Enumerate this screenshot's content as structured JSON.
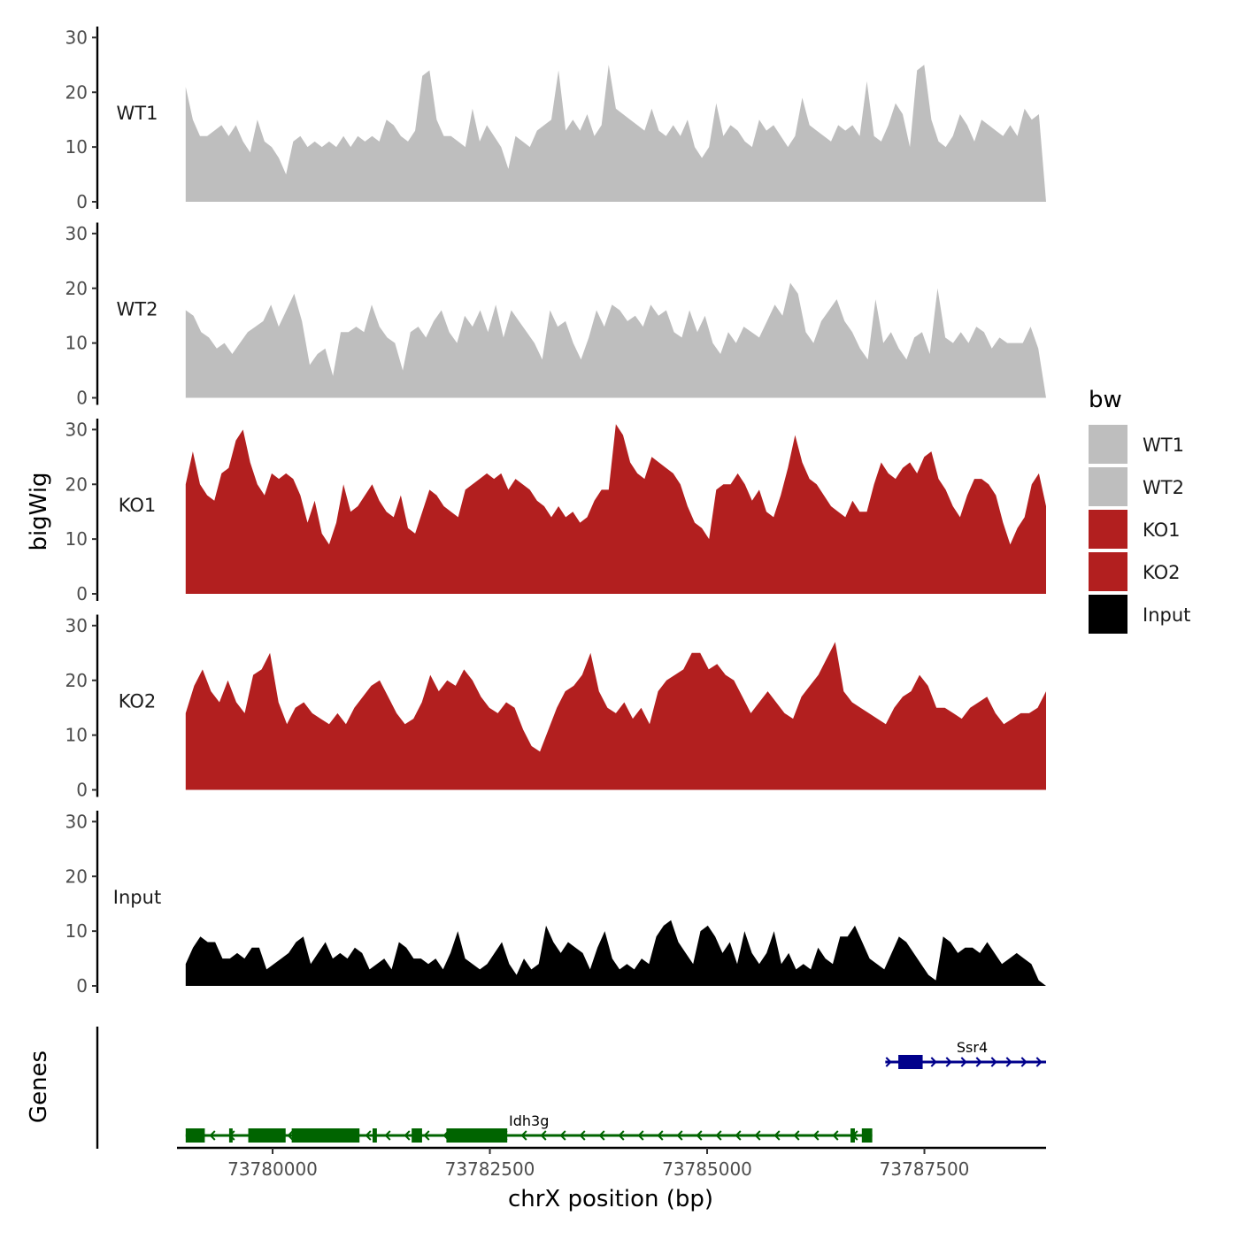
{
  "chart_data": {
    "type": "area",
    "ylabel": "bigWig",
    "xlabel": "chrX position (bp)",
    "x_range": [
      73778900,
      73788900
    ],
    "x_ticks": [
      73780000,
      73782500,
      73785000,
      73787500
    ],
    "x_tick_labels": [
      "73780000",
      "73782500",
      "73785000",
      "73787500"
    ],
    "y_ticks": [
      0,
      10,
      20,
      30
    ],
    "y_tick_labels": [
      "0",
      "10",
      "20",
      "30"
    ],
    "ylim": [
      0,
      32
    ],
    "tracks": [
      {
        "name": "WT1",
        "color": "#bebebe",
        "start": 73779000,
        "end": 73788900,
        "values": [
          21,
          15,
          12,
          12,
          13,
          14,
          12,
          14,
          11,
          9,
          15,
          11,
          10,
          8,
          5,
          11,
          12,
          10,
          11,
          10,
          11,
          10,
          12,
          10,
          12,
          11,
          12,
          11,
          15,
          14,
          12,
          11,
          13,
          23,
          24,
          15,
          12,
          12,
          11,
          10,
          17,
          11,
          14,
          12,
          10,
          6,
          12,
          11,
          10,
          13,
          14,
          15,
          24,
          13,
          15,
          13,
          16,
          12,
          14,
          25,
          17,
          16,
          15,
          14,
          13,
          17,
          13,
          12,
          14,
          12,
          15,
          10,
          8,
          10,
          18,
          12,
          14,
          13,
          11,
          10,
          15,
          13,
          14,
          12,
          10,
          12,
          19,
          14,
          13,
          12,
          11,
          14,
          13,
          14,
          12,
          22,
          12,
          11,
          14,
          18,
          16,
          10,
          24,
          25,
          15,
          11,
          10,
          12,
          16,
          14,
          11,
          15,
          14,
          13,
          12,
          14,
          12,
          17,
          15,
          16,
          0
        ]
      },
      {
        "name": "WT2",
        "color": "#bebebe",
        "start": 73779000,
        "end": 73788900,
        "values": [
          16,
          15,
          12,
          11,
          9,
          10,
          8,
          10,
          12,
          13,
          14,
          17,
          13,
          16,
          19,
          14,
          6,
          8,
          9,
          4,
          12,
          12,
          13,
          12,
          17,
          13,
          11,
          10,
          5,
          12,
          13,
          11,
          14,
          16,
          12,
          10,
          15,
          13,
          16,
          12,
          17,
          11,
          16,
          14,
          12,
          10,
          7,
          16,
          13,
          14,
          10,
          7,
          11,
          16,
          13,
          17,
          16,
          14,
          15,
          13,
          17,
          15,
          16,
          12,
          11,
          16,
          12,
          15,
          10,
          8,
          12,
          10,
          13,
          12,
          11,
          14,
          17,
          15,
          21,
          19,
          12,
          10,
          14,
          16,
          18,
          14,
          12,
          9,
          7,
          18,
          10,
          12,
          9,
          7,
          11,
          12,
          8,
          20,
          11,
          10,
          12,
          10,
          13,
          12,
          9,
          11,
          10,
          10,
          10,
          13,
          9,
          0
        ]
      },
      {
        "name": "KO1",
        "color": "#b21f1f",
        "start": 73779000,
        "end": 73788900,
        "values": [
          20,
          26,
          20,
          18,
          17,
          22,
          23,
          28,
          30,
          24,
          20,
          18,
          22,
          21,
          22,
          21,
          18,
          13,
          17,
          11,
          9,
          13,
          20,
          15,
          16,
          18,
          20,
          17,
          15,
          14,
          18,
          12,
          11,
          15,
          19,
          18,
          16,
          15,
          14,
          19,
          20,
          21,
          22,
          21,
          22,
          19,
          21,
          20,
          19,
          17,
          16,
          14,
          16,
          14,
          15,
          13,
          14,
          17,
          19,
          19,
          31,
          29,
          24,
          22,
          21,
          25,
          24,
          23,
          22,
          20,
          16,
          13,
          12,
          10,
          19,
          20,
          20,
          22,
          20,
          17,
          19,
          15,
          14,
          18,
          23,
          29,
          24,
          21,
          20,
          18,
          16,
          15,
          14,
          17,
          15,
          15,
          20,
          24,
          22,
          21,
          23,
          24,
          22,
          25,
          26,
          21,
          19,
          16,
          14,
          18,
          21,
          21,
          20,
          18,
          13,
          9,
          12,
          14,
          20,
          22,
          16
        ]
      },
      {
        "name": "KO2",
        "color": "#b21f1f",
        "start": 73779000,
        "end": 73788900,
        "values": [
          14,
          19,
          22,
          18,
          16,
          20,
          16,
          14,
          21,
          22,
          25,
          16,
          12,
          15,
          16,
          14,
          13,
          12,
          14,
          12,
          15,
          17,
          19,
          20,
          17,
          14,
          12,
          13,
          16,
          21,
          18,
          20,
          19,
          22,
          20,
          17,
          15,
          14,
          16,
          15,
          11,
          8,
          7,
          11,
          15,
          18,
          19,
          21,
          25,
          18,
          15,
          14,
          16,
          13,
          15,
          12,
          18,
          20,
          21,
          22,
          25,
          25,
          22,
          23,
          21,
          20,
          17,
          14,
          16,
          18,
          16,
          14,
          13,
          17,
          19,
          21,
          24,
          27,
          18,
          16,
          15,
          14,
          13,
          12,
          15,
          17,
          18,
          21,
          19,
          15,
          15,
          14,
          13,
          15,
          16,
          17,
          14,
          12,
          13,
          14,
          14,
          15,
          18
        ]
      },
      {
        "name": "Input",
        "color": "#000000",
        "start": 73779000,
        "end": 73788900,
        "values": [
          4,
          7,
          9,
          8,
          8,
          5,
          5,
          6,
          5,
          7,
          7,
          3,
          4,
          5,
          6,
          8,
          9,
          4,
          6,
          8,
          5,
          6,
          5,
          7,
          6,
          3,
          4,
          5,
          3,
          8,
          7,
          5,
          5,
          4,
          5,
          3,
          6,
          10,
          5,
          4,
          3,
          4,
          6,
          8,
          4,
          2,
          5,
          3,
          4,
          11,
          8,
          6,
          8,
          7,
          6,
          3,
          7,
          10,
          5,
          3,
          4,
          3,
          5,
          4,
          9,
          11,
          12,
          8,
          6,
          4,
          10,
          11,
          9,
          6,
          8,
          4,
          10,
          6,
          4,
          6,
          10,
          4,
          6,
          3,
          4,
          3,
          7,
          5,
          4,
          9,
          9,
          11,
          8,
          5,
          4,
          3,
          6,
          9,
          8,
          6,
          4,
          2,
          1,
          9,
          8,
          6,
          7,
          7,
          6,
          8,
          6,
          4,
          5,
          6,
          5,
          4,
          1,
          0
        ]
      }
    ],
    "legend": {
      "title": "bw",
      "position": "right",
      "entries": [
        {
          "label": "WT1",
          "color": "#bebebe"
        },
        {
          "label": "WT2",
          "color": "#bebebe"
        },
        {
          "label": "KO1",
          "color": "#b21f1f"
        },
        {
          "label": "KO2",
          "color": "#b21f1f"
        },
        {
          "label": "Input",
          "color": "#000000"
        }
      ]
    },
    "genes_panel": {
      "label": "Genes",
      "genes": [
        {
          "name": "Ssr4",
          "strand": "+",
          "color": "#00008b",
          "start": 73788900,
          "end": 73788880,
          "tx_start": 73787050,
          "tx_end": 73788900,
          "exons": [
            [
              73787200,
              73787480
            ]
          ],
          "label_pos": 73788050
        },
        {
          "name": "Idh3g",
          "strand": "-",
          "color": "#006400",
          "start": 73779000,
          "end": 73786900,
          "tx_start": 73779000,
          "tx_end": 73786900,
          "exons": [
            [
              73779000,
              73779220
            ],
            [
              73779500,
              73779540
            ],
            [
              73779720,
              73780150
            ],
            [
              73780220,
              73781000
            ],
            [
              73781150,
              73781200
            ],
            [
              73781600,
              73781720
            ],
            [
              73782000,
              73782700
            ],
            [
              73786650,
              73786700
            ],
            [
              73786780,
              73786900
            ]
          ],
          "label_pos": 73782950
        }
      ]
    }
  }
}
